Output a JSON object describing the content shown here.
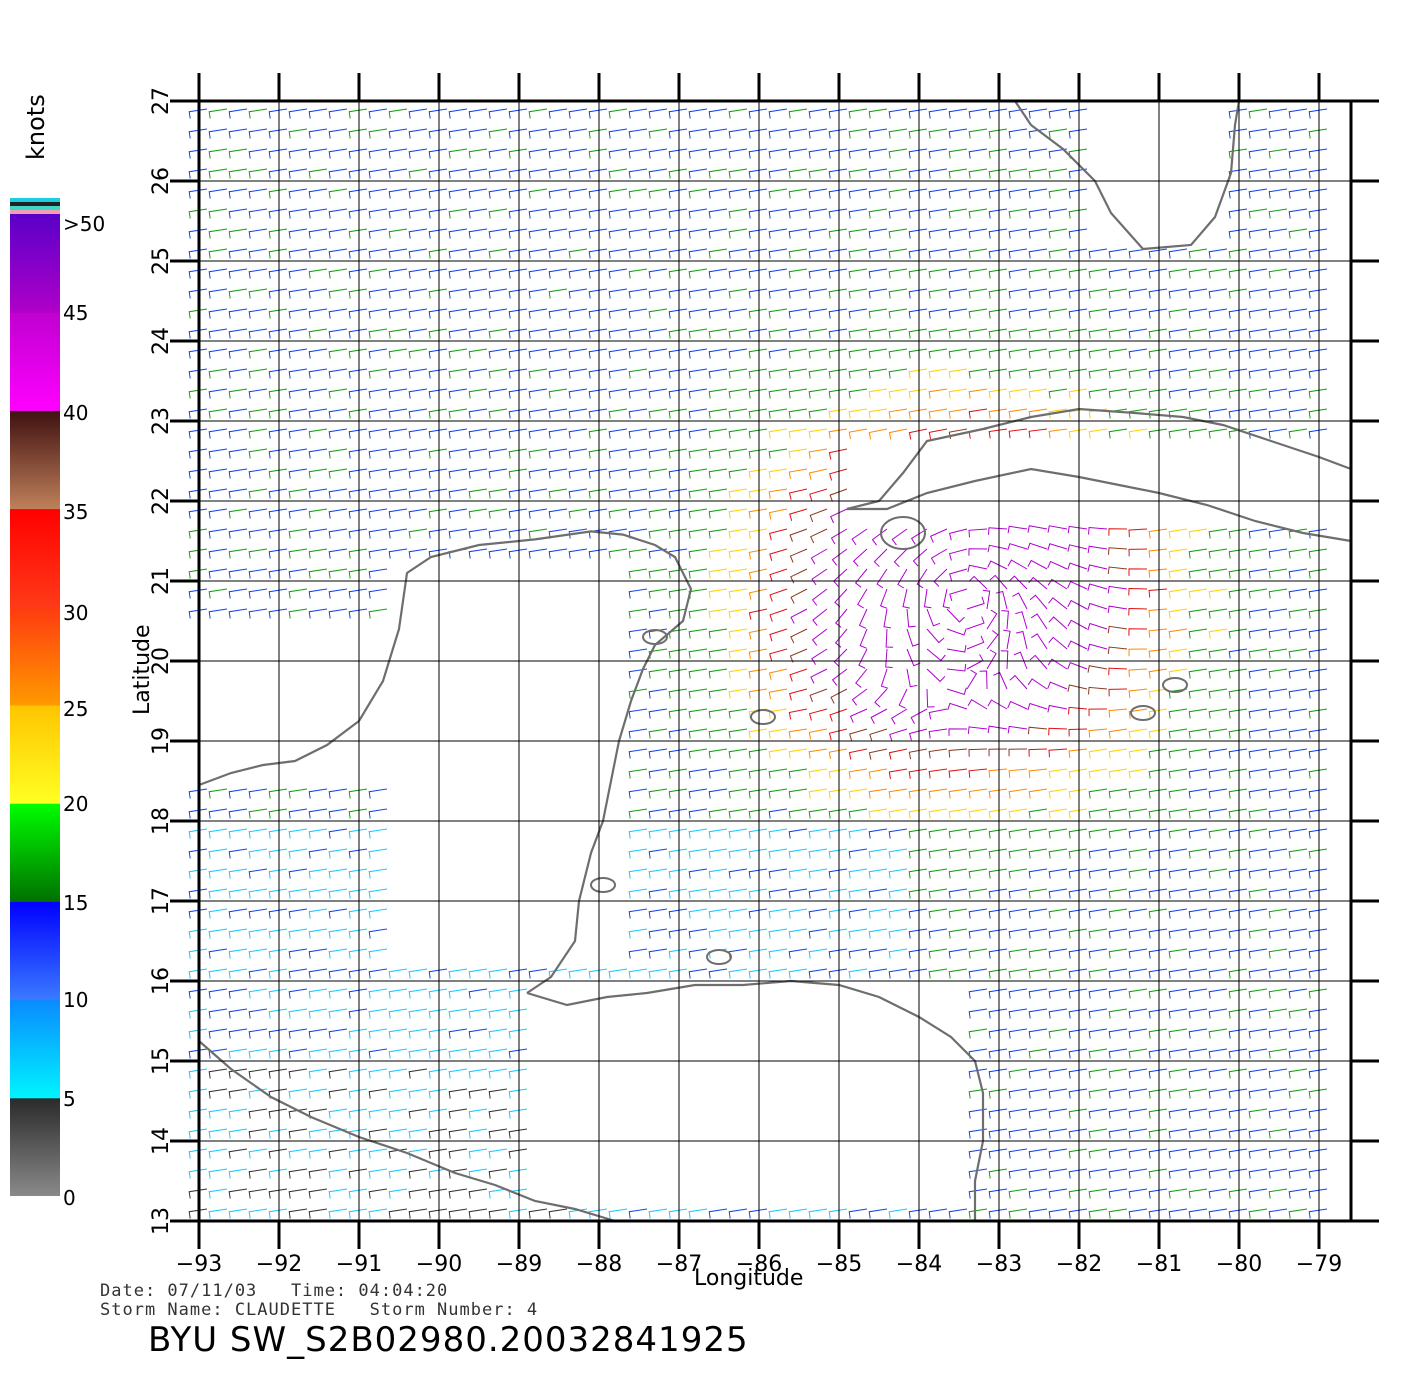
{
  "map": {
    "xlabel": "Longitude",
    "ylabel": "Latitude",
    "lon_range": [
      -93,
      -78.6
    ],
    "lat_range": [
      13,
      27
    ],
    "x_ticks": [
      -93,
      -92,
      -91,
      -90,
      -89,
      -88,
      -87,
      -86,
      -85,
      -84,
      -83,
      -82,
      -81,
      -80,
      -79
    ],
    "y_ticks": [
      13,
      14,
      15,
      16,
      17,
      18,
      19,
      20,
      21,
      22,
      23,
      24,
      25,
      26,
      27
    ],
    "grid": true,
    "coastline_color": "#6e6e6e",
    "regions": [
      "Gulf of Mexico",
      "Yucatan Peninsula",
      "Cuba",
      "Florida",
      "Honduras",
      "Caribbean Sea"
    ]
  },
  "colorbar": {
    "unit": "knots",
    "labels": [
      "0",
      "5",
      "10",
      "15",
      "20",
      "25",
      "30",
      "35",
      "40",
      "45",
      ">50"
    ],
    "bands": [
      {
        "range": "0-5",
        "colors": [
          "#8a8a8a",
          "#2a2a2a"
        ]
      },
      {
        "range": "5-10",
        "colors": [
          "#00f4ff",
          "#0a8aff"
        ]
      },
      {
        "range": "10-15",
        "colors": [
          "#3a7aff",
          "#0000ff"
        ]
      },
      {
        "range": "15-20",
        "colors": [
          "#007000",
          "#00ff00"
        ]
      },
      {
        "range": "20-25",
        "colors": [
          "#ffff22",
          "#ffc400"
        ]
      },
      {
        "range": "25-30",
        "colors": [
          "#ff9a00",
          "#ff3a10"
        ]
      },
      {
        "range": "30-35",
        "colors": [
          "#ff3a18",
          "#ff0000"
        ]
      },
      {
        "range": "35-40",
        "colors": [
          "#c0805a",
          "#3e1010"
        ]
      },
      {
        "range": "40-45",
        "colors": [
          "#ff00ff",
          "#c000d0"
        ]
      },
      {
        "range": "45-50",
        "colors": [
          "#b000c8",
          "#5a00c8"
        ]
      }
    ]
  },
  "info": {
    "date_line": "Date: 07/11/03   Time: 04:04:20",
    "storm_line": "Storm Name: CLAUDETTE   Storm Number: 4",
    "file_title": "BYU SW_S2B02980.20032841925"
  },
  "wind_field": {
    "type": "wind barbs",
    "storm_center": {
      "lon": -83.4,
      "lat": 20.8
    },
    "max_wind_knots": 48,
    "ambient_direction": "easterly trade winds"
  }
}
